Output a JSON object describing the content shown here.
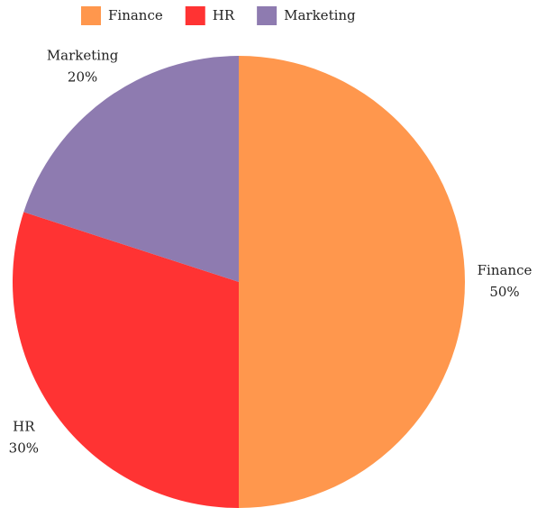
{
  "chart_data": {
    "type": "pie",
    "categories": [
      "Finance",
      "HR",
      "Marketing"
    ],
    "values": [
      50,
      30,
      20
    ],
    "value_labels": [
      "50%",
      "30%",
      "20%"
    ],
    "colors": [
      "#ff974d",
      "#ff3333",
      "#8e7bb0"
    ],
    "legend": "top"
  }
}
